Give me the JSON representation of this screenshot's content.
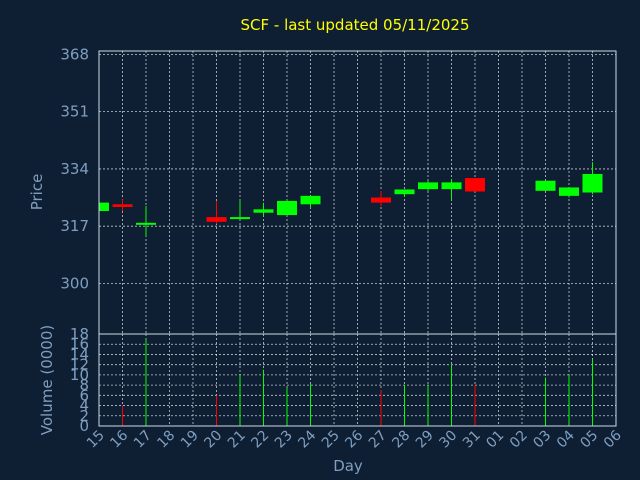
{
  "title": "SCF - last updated 05/11/2025",
  "colors": {
    "background": "#0f1f33",
    "up": "#00ff00",
    "down": "#ff0000",
    "text": "#7f9fc0",
    "title": "#ffff00"
  },
  "chart_data": [
    {
      "type": "candlestick",
      "ylabel": "Price",
      "yticks": [
        300,
        317,
        334,
        351,
        368
      ],
      "ylim": [
        285,
        369
      ],
      "grid": true,
      "candles": [
        {
          "x": "15",
          "open": 321.5,
          "close": 324.0,
          "high": 324.0,
          "low": 321.0
        },
        {
          "x": "16",
          "open": 323.5,
          "close": 322.7,
          "high": 325.0,
          "low": 321.5
        },
        {
          "x": "17",
          "open": 317.5,
          "close": 318.0,
          "high": 323.0,
          "low": 314.0
        },
        {
          "x": "20",
          "open": 319.7,
          "close": 318.3,
          "high": 324.5,
          "low": 317.7
        },
        {
          "x": "21",
          "open": 319.3,
          "close": 319.7,
          "high": 324.5,
          "low": 318.9
        },
        {
          "x": "22",
          "open": 321.0,
          "close": 322.0,
          "high": 324.0,
          "low": 320.0
        },
        {
          "x": "23",
          "open": 320.3,
          "close": 324.5,
          "high": 324.5,
          "low": 320.3
        },
        {
          "x": "24",
          "open": 323.5,
          "close": 326.0,
          "high": 326.0,
          "low": 322.5
        },
        {
          "x": "27",
          "open": 325.5,
          "close": 324.0,
          "high": 327.5,
          "low": 323.0
        },
        {
          "x": "28",
          "open": 326.5,
          "close": 327.9,
          "high": 327.9,
          "low": 325.7
        },
        {
          "x": "29",
          "open": 328.0,
          "close": 330.0,
          "high": 330.5,
          "low": 327.5
        },
        {
          "x": "30",
          "open": 328.0,
          "close": 330.0,
          "high": 331.0,
          "low": 325.0
        },
        {
          "x": "31",
          "open": 331.3,
          "close": 327.3,
          "high": 331.3,
          "low": 327.3
        },
        {
          "x": "03",
          "open": 327.5,
          "close": 330.5,
          "high": 330.5,
          "low": 327.5
        },
        {
          "x": "04",
          "open": 326.0,
          "close": 328.5,
          "high": 328.5,
          "low": 325.5
        },
        {
          "x": "05",
          "open": 327.0,
          "close": 332.5,
          "high": 336.0,
          "low": 326.5
        }
      ]
    },
    {
      "type": "bar",
      "ylabel": "Volume (0000)",
      "xlabel": "Day",
      "yticks": [
        0,
        2,
        4,
        6,
        8,
        10,
        12,
        14,
        16,
        18
      ],
      "ylim": [
        0,
        18
      ],
      "grid": true,
      "categories": [
        "15",
        "16",
        "17",
        "18",
        "19",
        "20",
        "21",
        "22",
        "23",
        "24",
        "25",
        "26",
        "27",
        "28",
        "29",
        "30",
        "31",
        "01",
        "02",
        "03",
        "04",
        "05",
        "06"
      ],
      "values": [
        {
          "x": "16",
          "v": 4,
          "dir": "down"
        },
        {
          "x": "17",
          "v": 17,
          "dir": "up"
        },
        {
          "x": "20",
          "v": 6,
          "dir": "down"
        },
        {
          "x": "21",
          "v": 10,
          "dir": "up"
        },
        {
          "x": "22",
          "v": 11,
          "dir": "up"
        },
        {
          "x": "23",
          "v": 7.5,
          "dir": "up"
        },
        {
          "x": "24",
          "v": 8.2,
          "dir": "up"
        },
        {
          "x": "27",
          "v": 7,
          "dir": "down"
        },
        {
          "x": "28",
          "v": 8,
          "dir": "up"
        },
        {
          "x": "29",
          "v": 8,
          "dir": "up"
        },
        {
          "x": "30",
          "v": 12,
          "dir": "up"
        },
        {
          "x": "31",
          "v": 8,
          "dir": "down"
        },
        {
          "x": "03",
          "v": 9.5,
          "dir": "up"
        },
        {
          "x": "04",
          "v": 10,
          "dir": "up"
        },
        {
          "x": "05",
          "v": 13,
          "dir": "up"
        }
      ]
    }
  ]
}
